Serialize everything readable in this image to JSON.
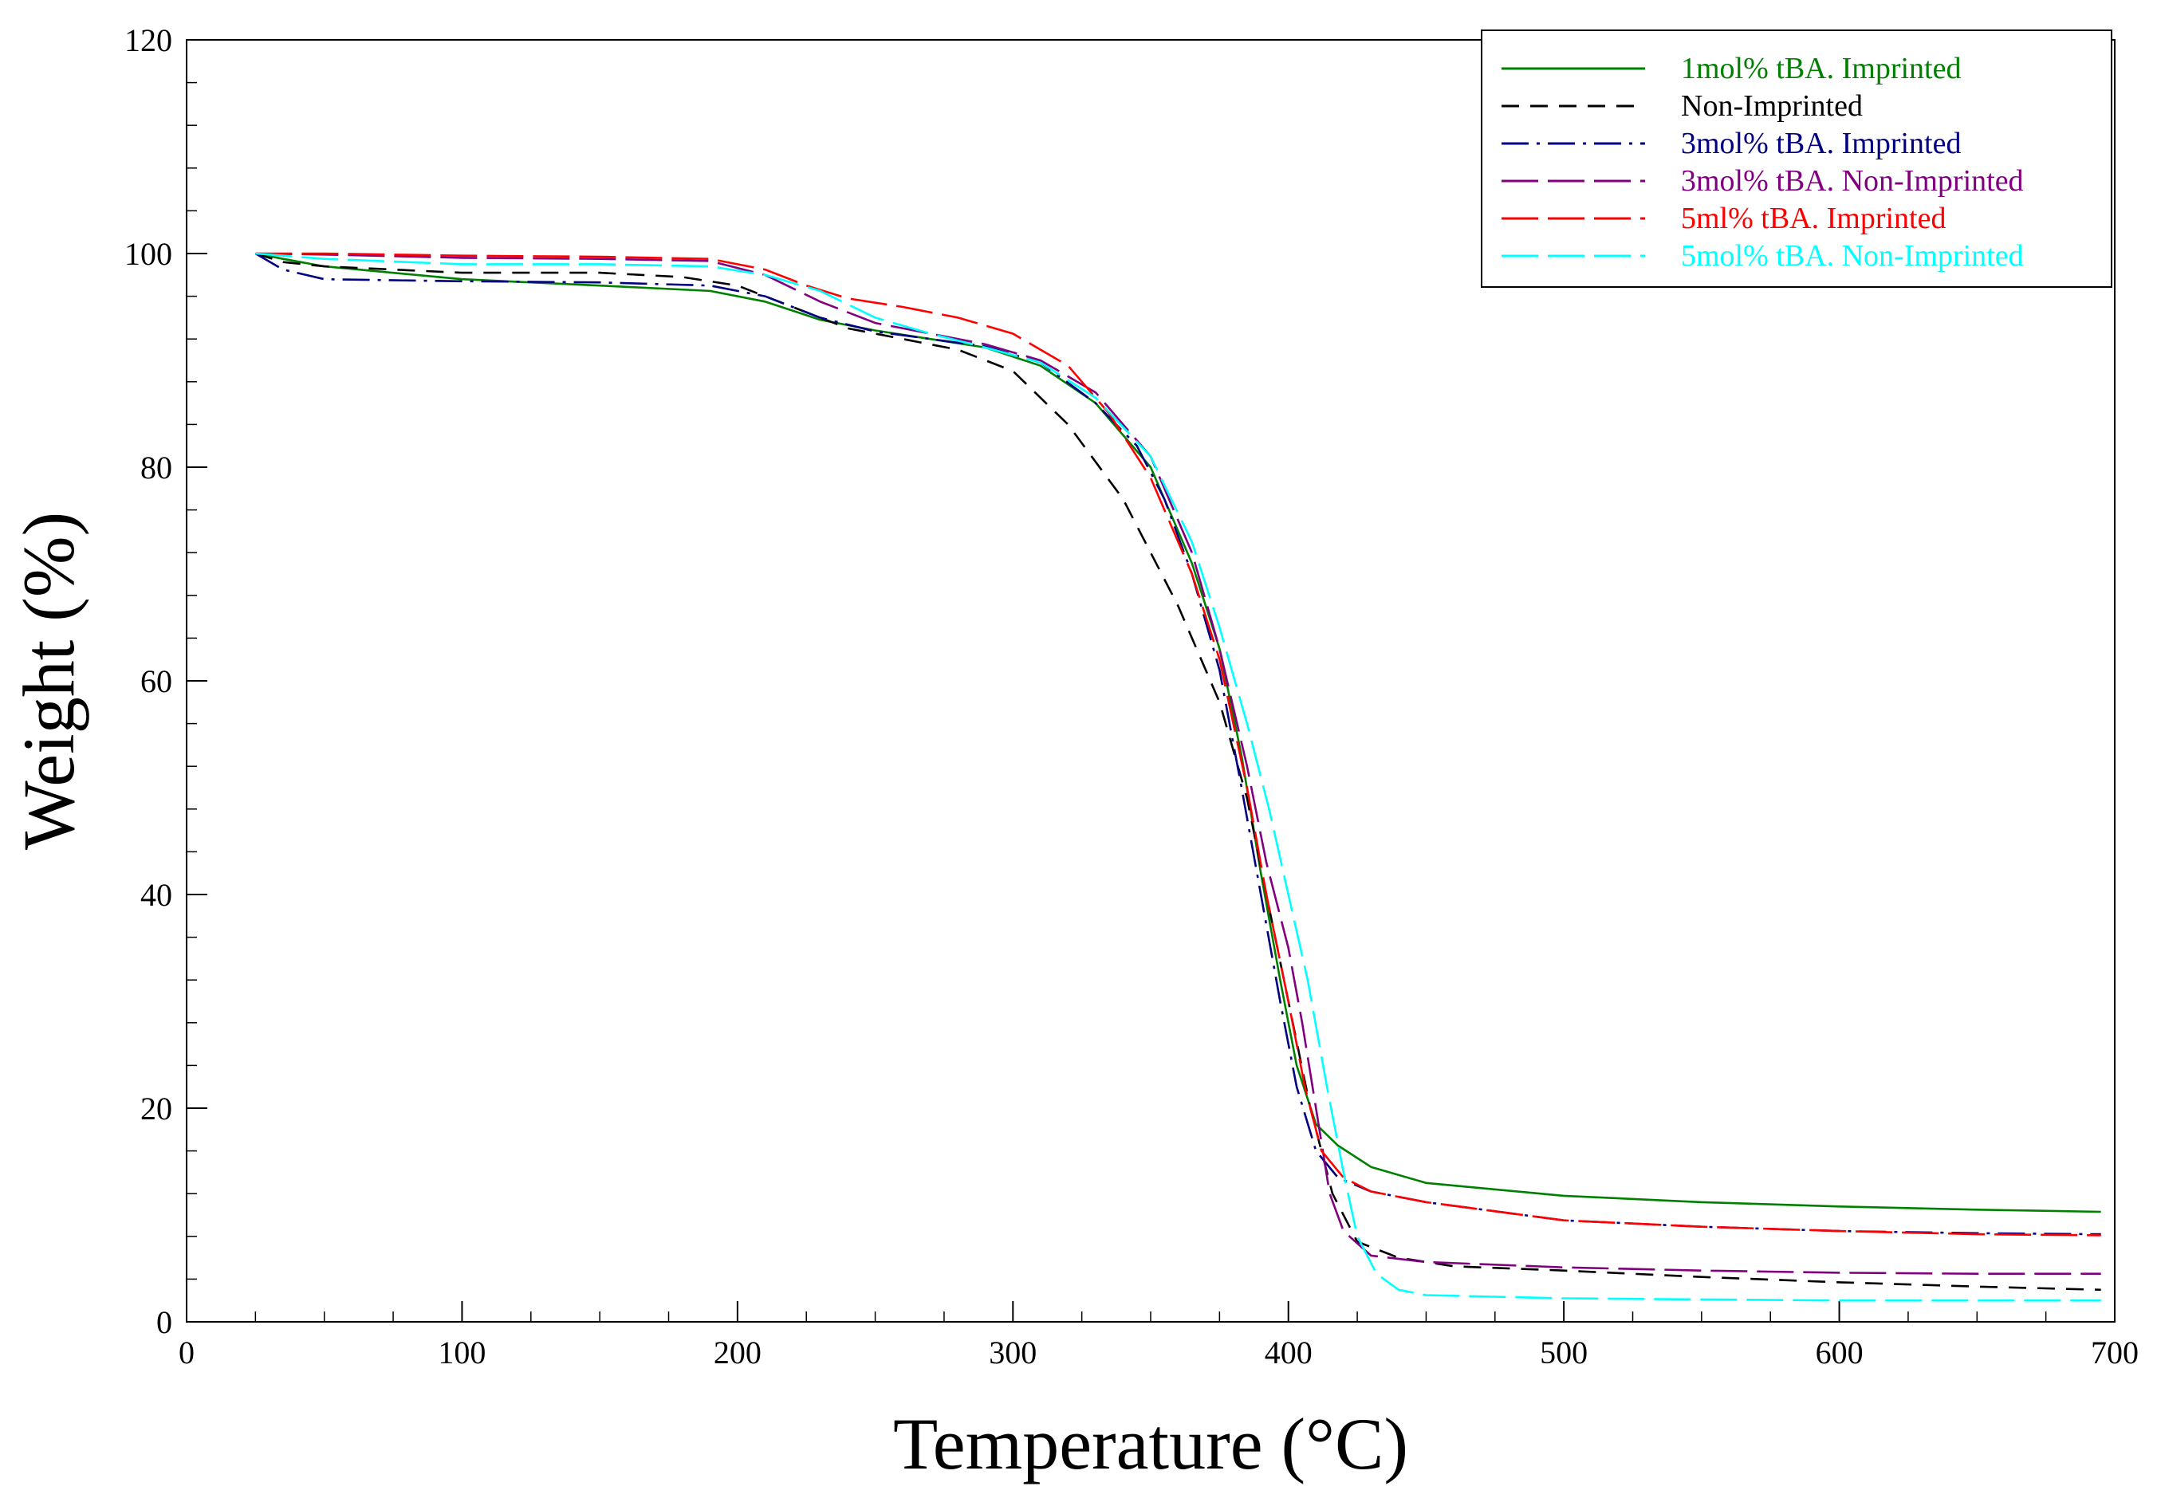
{
  "chart_data": {
    "type": "line",
    "title": "",
    "xlabel": "Temperature (°C)",
    "ylabel": "Weight (%)",
    "xlim": [
      0,
      700
    ],
    "ylim": [
      0,
      120
    ],
    "xticks": [
      0,
      100,
      200,
      300,
      400,
      500,
      600,
      700
    ],
    "yticks": [
      0,
      20,
      40,
      60,
      80,
      100,
      120
    ],
    "x_tick_labels": [
      "0",
      "100",
      "200",
      "300",
      "400",
      "500",
      "600",
      "700"
    ],
    "y_tick_labels": [
      "0",
      "20",
      "40",
      "60",
      "80",
      "100",
      "120"
    ],
    "legend_position": "top-right",
    "grid": false,
    "series": [
      {
        "name": "1mol% tBA. Imprinted",
        "color": "#008000",
        "dash": "solid",
        "points": [
          [
            25,
            100
          ],
          [
            35,
            99.5
          ],
          [
            50,
            98.8
          ],
          [
            100,
            97.6
          ],
          [
            150,
            97
          ],
          [
            190,
            96.5
          ],
          [
            210,
            95.5
          ],
          [
            230,
            93.8
          ],
          [
            250,
            92.8
          ],
          [
            270,
            92
          ],
          [
            290,
            91.2
          ],
          [
            310,
            89.5
          ],
          [
            330,
            86
          ],
          [
            350,
            80
          ],
          [
            365,
            71
          ],
          [
            375,
            63
          ],
          [
            383,
            53
          ],
          [
            390,
            42
          ],
          [
            397,
            32
          ],
          [
            403,
            24
          ],
          [
            410,
            18.5
          ],
          [
            418,
            16.5
          ],
          [
            430,
            14.5
          ],
          [
            450,
            13
          ],
          [
            500,
            11.8
          ],
          [
            550,
            11.2
          ],
          [
            600,
            10.8
          ],
          [
            650,
            10.5
          ],
          [
            695,
            10.3
          ]
        ]
      },
      {
        "name": "Non-Imprinted",
        "color": "#000000",
        "dash": "dash",
        "points": [
          [
            25,
            100
          ],
          [
            35,
            99.2
          ],
          [
            50,
            98.8
          ],
          [
            100,
            98.2
          ],
          [
            150,
            98.2
          ],
          [
            180,
            97.8
          ],
          [
            200,
            97
          ],
          [
            220,
            95
          ],
          [
            240,
            93
          ],
          [
            260,
            92
          ],
          [
            280,
            91
          ],
          [
            300,
            89
          ],
          [
            320,
            84
          ],
          [
            340,
            77
          ],
          [
            360,
            67
          ],
          [
            375,
            58
          ],
          [
            385,
            49
          ],
          [
            392,
            40
          ],
          [
            400,
            30
          ],
          [
            408,
            20
          ],
          [
            416,
            12
          ],
          [
            425,
            7.5
          ],
          [
            440,
            6
          ],
          [
            460,
            5.2
          ],
          [
            500,
            4.8
          ],
          [
            550,
            4.2
          ],
          [
            600,
            3.7
          ],
          [
            650,
            3.3
          ],
          [
            695,
            3
          ]
        ]
      },
      {
        "name": "3mol% tBA. Imprinted",
        "color": "#000080",
        "dash": "dashdot",
        "points": [
          [
            25,
            100
          ],
          [
            35,
            98.5
          ],
          [
            50,
            97.6
          ],
          [
            100,
            97.4
          ],
          [
            150,
            97.3
          ],
          [
            190,
            97
          ],
          [
            210,
            96
          ],
          [
            230,
            94
          ],
          [
            250,
            92.7
          ],
          [
            270,
            92
          ],
          [
            290,
            91.3
          ],
          [
            310,
            89.8
          ],
          [
            330,
            86
          ],
          [
            345,
            82
          ],
          [
            355,
            77
          ],
          [
            365,
            70
          ],
          [
            375,
            61
          ],
          [
            383,
            50
          ],
          [
            390,
            40
          ],
          [
            397,
            30
          ],
          [
            403,
            22
          ],
          [
            410,
            16
          ],
          [
            418,
            13.5
          ],
          [
            430,
            12.2
          ],
          [
            450,
            11.2
          ],
          [
            500,
            9.5
          ],
          [
            550,
            8.9
          ],
          [
            600,
            8.5
          ],
          [
            650,
            8.3
          ],
          [
            695,
            8.2
          ]
        ]
      },
      {
        "name": "3mol% tBA. Non-Imprinted",
        "color": "#800080",
        "dash": "longdash",
        "points": [
          [
            25,
            100
          ],
          [
            50,
            99.9
          ],
          [
            100,
            99.6
          ],
          [
            150,
            99.5
          ],
          [
            190,
            99.3
          ],
          [
            210,
            98
          ],
          [
            230,
            95.5
          ],
          [
            250,
            93.5
          ],
          [
            270,
            92.5
          ],
          [
            290,
            91.5
          ],
          [
            310,
            90
          ],
          [
            330,
            87
          ],
          [
            350,
            81
          ],
          [
            365,
            72
          ],
          [
            375,
            63
          ],
          [
            385,
            52
          ],
          [
            392,
            43
          ],
          [
            400,
            35
          ],
          [
            405,
            28
          ],
          [
            410,
            20
          ],
          [
            415,
            12
          ],
          [
            420,
            8.5
          ],
          [
            430,
            6.2
          ],
          [
            450,
            5.6
          ],
          [
            500,
            5.1
          ],
          [
            550,
            4.8
          ],
          [
            600,
            4.6
          ],
          [
            650,
            4.5
          ],
          [
            695,
            4.5
          ]
        ]
      },
      {
        "name": "5ml% tBA. Imprinted",
        "color": "#ff0000",
        "dash": "longdash",
        "points": [
          [
            25,
            100
          ],
          [
            50,
            100
          ],
          [
            100,
            99.8
          ],
          [
            150,
            99.7
          ],
          [
            190,
            99.5
          ],
          [
            210,
            98.5
          ],
          [
            225,
            97
          ],
          [
            240,
            95.8
          ],
          [
            260,
            95
          ],
          [
            280,
            94
          ],
          [
            300,
            92.5
          ],
          [
            320,
            89.5
          ],
          [
            335,
            85
          ],
          [
            350,
            79
          ],
          [
            365,
            70
          ],
          [
            375,
            62
          ],
          [
            385,
            50
          ],
          [
            392,
            40
          ],
          [
            400,
            30
          ],
          [
            406,
            22
          ],
          [
            412,
            16
          ],
          [
            420,
            13.5
          ],
          [
            430,
            12.2
          ],
          [
            450,
            11.2
          ],
          [
            500,
            9.5
          ],
          [
            550,
            8.9
          ],
          [
            600,
            8.5
          ],
          [
            650,
            8.2
          ],
          [
            695,
            8.1
          ]
        ]
      },
      {
        "name": "5mol% tBA. Non-Imprinted",
        "color": "#00ffff",
        "dash": "longdash",
        "points": [
          [
            25,
            100
          ],
          [
            50,
            99.5
          ],
          [
            100,
            99
          ],
          [
            150,
            99
          ],
          [
            190,
            98.8
          ],
          [
            210,
            98
          ],
          [
            230,
            96.5
          ],
          [
            250,
            94
          ],
          [
            270,
            92.5
          ],
          [
            290,
            91.2
          ],
          [
            310,
            89.8
          ],
          [
            330,
            86.5
          ],
          [
            350,
            81
          ],
          [
            365,
            73
          ],
          [
            375,
            65
          ],
          [
            385,
            56
          ],
          [
            393,
            48
          ],
          [
            400,
            40
          ],
          [
            407,
            32
          ],
          [
            414,
            22
          ],
          [
            420,
            14
          ],
          [
            425,
            8
          ],
          [
            432,
            4.5
          ],
          [
            440,
            3
          ],
          [
            450,
            2.5
          ],
          [
            500,
            2.2
          ],
          [
            550,
            2.1
          ],
          [
            600,
            2
          ],
          [
            650,
            2
          ],
          [
            695,
            2
          ]
        ]
      }
    ]
  }
}
